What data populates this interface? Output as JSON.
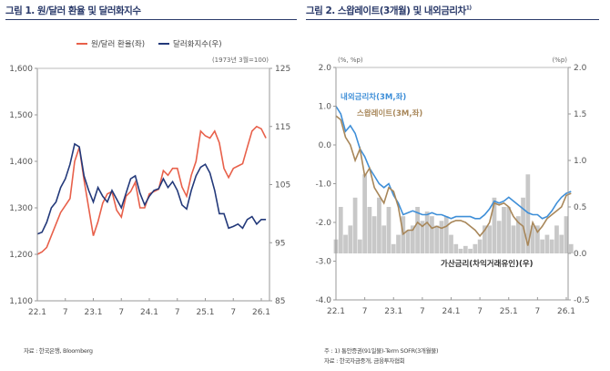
{
  "figure1": {
    "title": "그림 1. 원/달러 환율 및 달러화지수",
    "source": "자료 : 한국은행, Bloomberg"
  },
  "figure2": {
    "title": "그림 2. 스왑레이트(3개월) 및 내외금리차",
    "title_sup": "1)",
    "note": "주 : 1) 통안증권(91일물)-Term SOFR(3개월물)",
    "source": "자료 : 한국자금중개, 금융투자협회"
  },
  "chart_data": [
    {
      "type": "line",
      "title": "원/달러 환율 및 달러화지수",
      "x": [
        "22.1",
        "22.2",
        "22.3",
        "22.4",
        "22.5",
        "22.6",
        "22.7",
        "22.8",
        "22.9",
        "22.10",
        "22.11",
        "22.12",
        "23.1",
        "23.2",
        "23.3",
        "23.4",
        "23.5",
        "23.6",
        "23.7",
        "23.8",
        "23.9",
        "23.10",
        "23.11",
        "23.12",
        "24.1",
        "24.2",
        "24.3",
        "24.4",
        "24.5",
        "24.6",
        "24.7",
        "24.8",
        "24.9",
        "24.10",
        "24.11",
        "24.12",
        "25.1",
        "25.2",
        "25.3",
        "25.4",
        "25.5",
        "25.6",
        "25.7",
        "25.8",
        "25.9",
        "25.10",
        "25.11",
        "25.12",
        "26.1",
        "26.2"
      ],
      "xticks": [
        "22.1",
        "7",
        "23.1",
        "7",
        "24.1",
        "7",
        "25.1",
        "7",
        "26.1"
      ],
      "ylim_left": [
        1100,
        1600
      ],
      "yticks_left": [
        "1,100",
        "1,200",
        "1,300",
        "1,400",
        "1,500",
        "1,600"
      ],
      "ylim_right": [
        85,
        125
      ],
      "yticks_right": [
        "85",
        "95",
        "105",
        "115",
        "125"
      ],
      "right_unit": "(1973년 3월=100)",
      "legend_position": "top-center",
      "grid": false,
      "series": [
        {
          "name": "원/달러 환율(좌)",
          "axis": "left",
          "color": "#e8604a",
          "values": [
            1200,
            1205,
            1215,
            1240,
            1265,
            1290,
            1305,
            1320,
            1400,
            1430,
            1360,
            1300,
            1240,
            1270,
            1310,
            1330,
            1335,
            1295,
            1280,
            1325,
            1335,
            1355,
            1300,
            1300,
            1330,
            1335,
            1340,
            1380,
            1370,
            1385,
            1385,
            1345,
            1325,
            1370,
            1400,
            1465,
            1455,
            1450,
            1465,
            1440,
            1385,
            1365,
            1385,
            1390,
            1395,
            1430,
            1465,
            1475,
            1470,
            1450
          ]
        },
        {
          "name": "달러화지수(우)",
          "axis": "right",
          "color": "#23397a",
          "values": [
            96.5,
            96.8,
            98.5,
            101,
            102,
            104.5,
            106,
            108.5,
            112,
            111.5,
            106.5,
            104,
            102,
            104.5,
            103,
            102,
            104,
            102.5,
            101,
            103.5,
            106,
            106.5,
            103.5,
            101.5,
            103,
            104,
            104.3,
            106,
            104.5,
            105.5,
            104,
            101.5,
            100.8,
            104,
            106.5,
            108,
            108.5,
            107,
            104,
            100,
            100,
            97.5,
            97.8,
            98.2,
            97.5,
            99,
            99.5,
            98.2,
            99,
            99
          ]
        }
      ]
    },
    {
      "type": "line",
      "title": "스왑레이트(3개월) 및 내외금리차",
      "x": [
        "22.1",
        "22.2",
        "22.3",
        "22.4",
        "22.5",
        "22.6",
        "22.7",
        "22.8",
        "22.9",
        "22.10",
        "22.11",
        "22.12",
        "23.1",
        "23.2",
        "23.3",
        "23.4",
        "23.5",
        "23.6",
        "23.7",
        "23.8",
        "23.9",
        "23.10",
        "23.11",
        "23.12",
        "24.1",
        "24.2",
        "24.3",
        "24.4",
        "24.5",
        "24.6",
        "24.7",
        "24.8",
        "24.9",
        "24.10",
        "24.11",
        "24.12",
        "25.1",
        "25.2",
        "25.3",
        "25.4",
        "25.5",
        "25.6",
        "25.7",
        "25.8",
        "25.9",
        "25.10",
        "25.11",
        "25.12",
        "26.1",
        "26.2"
      ],
      "xticks": [
        "22.1",
        "7",
        "23.1",
        "7",
        "24.1",
        "7",
        "25.1",
        "7",
        "26.1"
      ],
      "ylim_left": [
        -4.0,
        2.0
      ],
      "yticks_left": [
        "-4.0",
        "-3.0",
        "-2.0",
        "-1.0",
        "0.0",
        "1.0",
        "2.0"
      ],
      "left_unit": "(%, %p)",
      "ylim_right": [
        -0.5,
        2.0
      ],
      "yticks_right": [
        "-0.5",
        "0.0",
        "0.5",
        "1.0",
        "1.5",
        "2.0"
      ],
      "right_unit": "(%p)",
      "grid": false,
      "series": [
        {
          "name": "가산금리(차익거래유인)(우)",
          "axis": "right",
          "kind": "area",
          "color": "#c8c8c8",
          "values": [
            0.15,
            0.5,
            0.2,
            0.3,
            0.6,
            0.15,
            0.85,
            0.5,
            0.4,
            0.6,
            0.3,
            0.5,
            0.1,
            0.2,
            0.4,
            0.25,
            0.3,
            0.5,
            0.35,
            0.45,
            0.4,
            0.3,
            0.35,
            0.4,
            0.2,
            0.1,
            0.05,
            0.08,
            0.05,
            0.1,
            0.15,
            0.3,
            0.3,
            0.6,
            0.35,
            0.5,
            0.5,
            0.3,
            0.4,
            0.6,
            0.85,
            0.3,
            0.3,
            0.15,
            0.2,
            0.15,
            0.3,
            0.2,
            0.4,
            0.1
          ]
        },
        {
          "name": "내외금리차(3M,좌)",
          "axis": "left",
          "color": "#3f8fd8",
          "values": [
            1.0,
            0.8,
            0.35,
            0.5,
            0.3,
            -0.1,
            -0.3,
            -0.6,
            -0.8,
            -1.0,
            -1.1,
            -1.0,
            -1.3,
            -1.5,
            -1.8,
            -1.75,
            -1.7,
            -1.75,
            -1.8,
            -1.8,
            -1.75,
            -1.8,
            -1.8,
            -1.85,
            -1.9,
            -1.85,
            -1.85,
            -1.85,
            -1.85,
            -1.9,
            -1.9,
            -1.8,
            -1.65,
            -1.45,
            -1.5,
            -1.45,
            -1.35,
            -1.45,
            -1.55,
            -1.65,
            -1.75,
            -1.8,
            -1.8,
            -1.9,
            -1.85,
            -1.7,
            -1.5,
            -1.35,
            -1.25,
            -1.2
          ]
        },
        {
          "name": "스왑레이트(3M,좌)",
          "axis": "left",
          "color": "#a8875a",
          "values": [
            0.75,
            0.65,
            0.2,
            0.0,
            -0.4,
            -0.1,
            -0.8,
            -0.6,
            -1.1,
            -1.3,
            -1.5,
            -1.1,
            -1.2,
            -1.6,
            -2.3,
            -2.2,
            -2.2,
            -2.0,
            -2.1,
            -2.0,
            -2.15,
            -2.1,
            -2.15,
            -2.1,
            -2.0,
            -1.95,
            -1.95,
            -2.0,
            -2.1,
            -2.2,
            -2.35,
            -2.2,
            -2.0,
            -1.5,
            -1.55,
            -1.5,
            -1.6,
            -1.85,
            -2.0,
            -2.1,
            -2.6,
            -2.0,
            -2.25,
            -2.1,
            -1.9,
            -1.8,
            -1.7,
            -1.6,
            -1.3,
            -1.25
          ]
        }
      ]
    }
  ]
}
